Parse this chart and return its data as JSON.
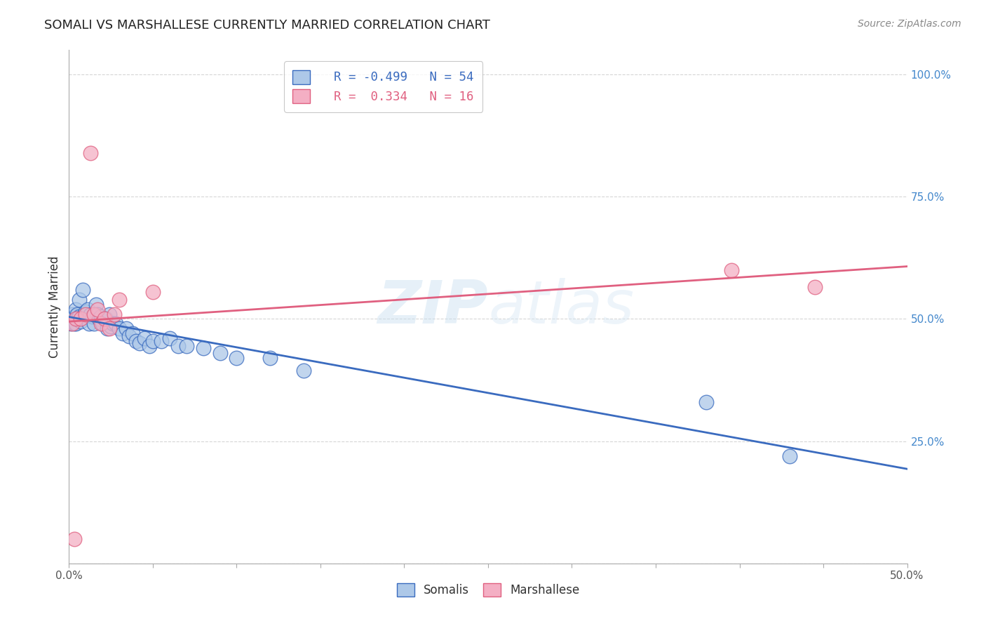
{
  "title": "SOMALI VS MARSHALLESE CURRENTLY MARRIED CORRELATION CHART",
  "source": "Source: ZipAtlas.com",
  "ylabel": "Currently Married",
  "watermark": "ZIPatlas",
  "xmin": 0.0,
  "xmax": 0.5,
  "ymin": 0.0,
  "ymax": 1.05,
  "legend_r_somali": "-0.499",
  "legend_n_somali": "54",
  "legend_r_marsh": "0.334",
  "legend_n_marsh": "16",
  "somali_color": "#adc8e8",
  "marshallese_color": "#f4afc4",
  "somali_line_color": "#3a6bbf",
  "marshallese_line_color": "#e06080",
  "somali_x": [
    0.001,
    0.002,
    0.002,
    0.003,
    0.003,
    0.004,
    0.004,
    0.005,
    0.005,
    0.006,
    0.006,
    0.007,
    0.008,
    0.009,
    0.01,
    0.01,
    0.011,
    0.012,
    0.013,
    0.014,
    0.015,
    0.016,
    0.017,
    0.018,
    0.019,
    0.02,
    0.021,
    0.022,
    0.023,
    0.024,
    0.025,
    0.026,
    0.028,
    0.03,
    0.032,
    0.034,
    0.036,
    0.038,
    0.04,
    0.042,
    0.045,
    0.048,
    0.05,
    0.055,
    0.06,
    0.065,
    0.07,
    0.08,
    0.09,
    0.1,
    0.12,
    0.14,
    0.38,
    0.43
  ],
  "somali_y": [
    0.49,
    0.5,
    0.51,
    0.505,
    0.49,
    0.52,
    0.49,
    0.51,
    0.5,
    0.505,
    0.54,
    0.495,
    0.56,
    0.51,
    0.505,
    0.515,
    0.52,
    0.49,
    0.51,
    0.505,
    0.49,
    0.53,
    0.51,
    0.5,
    0.505,
    0.49,
    0.5,
    0.5,
    0.48,
    0.51,
    0.485,
    0.49,
    0.49,
    0.48,
    0.47,
    0.48,
    0.465,
    0.47,
    0.455,
    0.45,
    0.46,
    0.445,
    0.455,
    0.455,
    0.46,
    0.445,
    0.445,
    0.44,
    0.43,
    0.42,
    0.42,
    0.395,
    0.33,
    0.22
  ],
  "marshallese_x": [
    0.002,
    0.003,
    0.004,
    0.007,
    0.01,
    0.013,
    0.015,
    0.017,
    0.019,
    0.021,
    0.024,
    0.027,
    0.03,
    0.05,
    0.395,
    0.445
  ],
  "marshallese_y": [
    0.49,
    0.05,
    0.5,
    0.5,
    0.51,
    0.84,
    0.51,
    0.52,
    0.49,
    0.5,
    0.48,
    0.51,
    0.54,
    0.555,
    0.6,
    0.565
  ],
  "background_color": "#ffffff",
  "grid_color": "#cccccc"
}
